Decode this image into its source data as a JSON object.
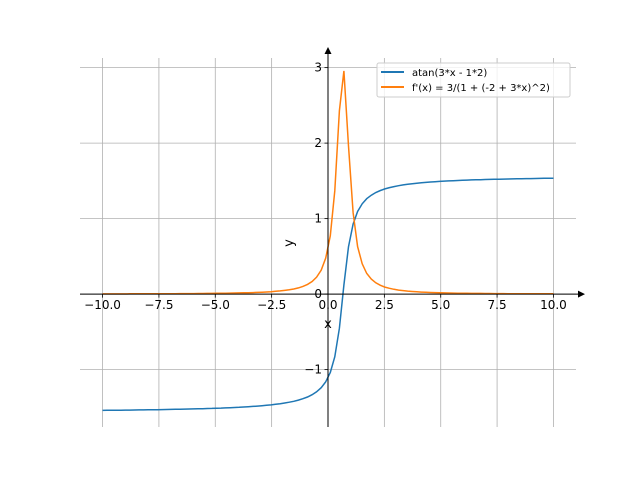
{
  "chart_data": {
    "type": "line",
    "title": "",
    "xlabel": "x",
    "ylabel": "y",
    "xlim": [
      -11,
      11
    ],
    "ylim": [
      -1.76,
      3.26
    ],
    "grid": true,
    "legend_position": "top-right",
    "xticks": [
      -10,
      -7.5,
      -5,
      -2.5,
      0,
      2.5,
      5,
      7.5,
      10
    ],
    "xtick_labels": [
      "−10.0",
      "−7.5",
      "−5.0",
      "−2.5",
      "0.0",
      "2.5",
      "5.0",
      "7.5",
      "10.0"
    ],
    "yticks": [
      -1,
      0,
      1,
      2,
      3
    ],
    "ytick_labels": [
      "−1",
      "0",
      "1",
      "2",
      "3"
    ],
    "series": [
      {
        "name": "atan(3*x - 1*2)",
        "color": "#1f77b4",
        "expr": "atan",
        "x_range": [
          -10,
          10
        ],
        "samples": 100
      },
      {
        "name": "f'(x) = 3/(1 + (-2 + 3*x)^2)",
        "color": "#ff7f0e",
        "expr": "deriv",
        "x_range": [
          -10,
          10
        ],
        "samples": 100
      }
    ]
  }
}
